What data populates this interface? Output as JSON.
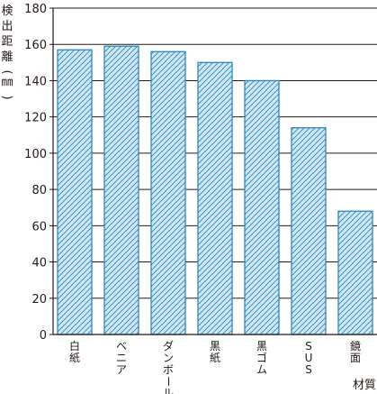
{
  "colors": {
    "bar_fill": "#cfe8f3",
    "bar_stroke": "#2f86b7",
    "hatch": "#2f86b7",
    "grid": "#231815",
    "axis": "#231815",
    "text": "#231815"
  },
  "chart_data": {
    "type": "bar",
    "title": "",
    "ylabel": "検出距離(㎜)",
    "xlabel": "材質",
    "categories": [
      "白紙",
      "ベニア",
      "ダンボール",
      "黒紙",
      "黒ゴム",
      "SUS",
      "鏡面"
    ],
    "values": [
      157,
      159,
      156,
      150,
      140,
      114,
      68
    ],
    "ylim": [
      0,
      180
    ],
    "yticks": [
      "0",
      "20",
      "40",
      "60",
      "80",
      "100",
      "120",
      "140",
      "160",
      "180"
    ],
    "grid": true,
    "bar_pattern": "diagonal-hatch"
  }
}
